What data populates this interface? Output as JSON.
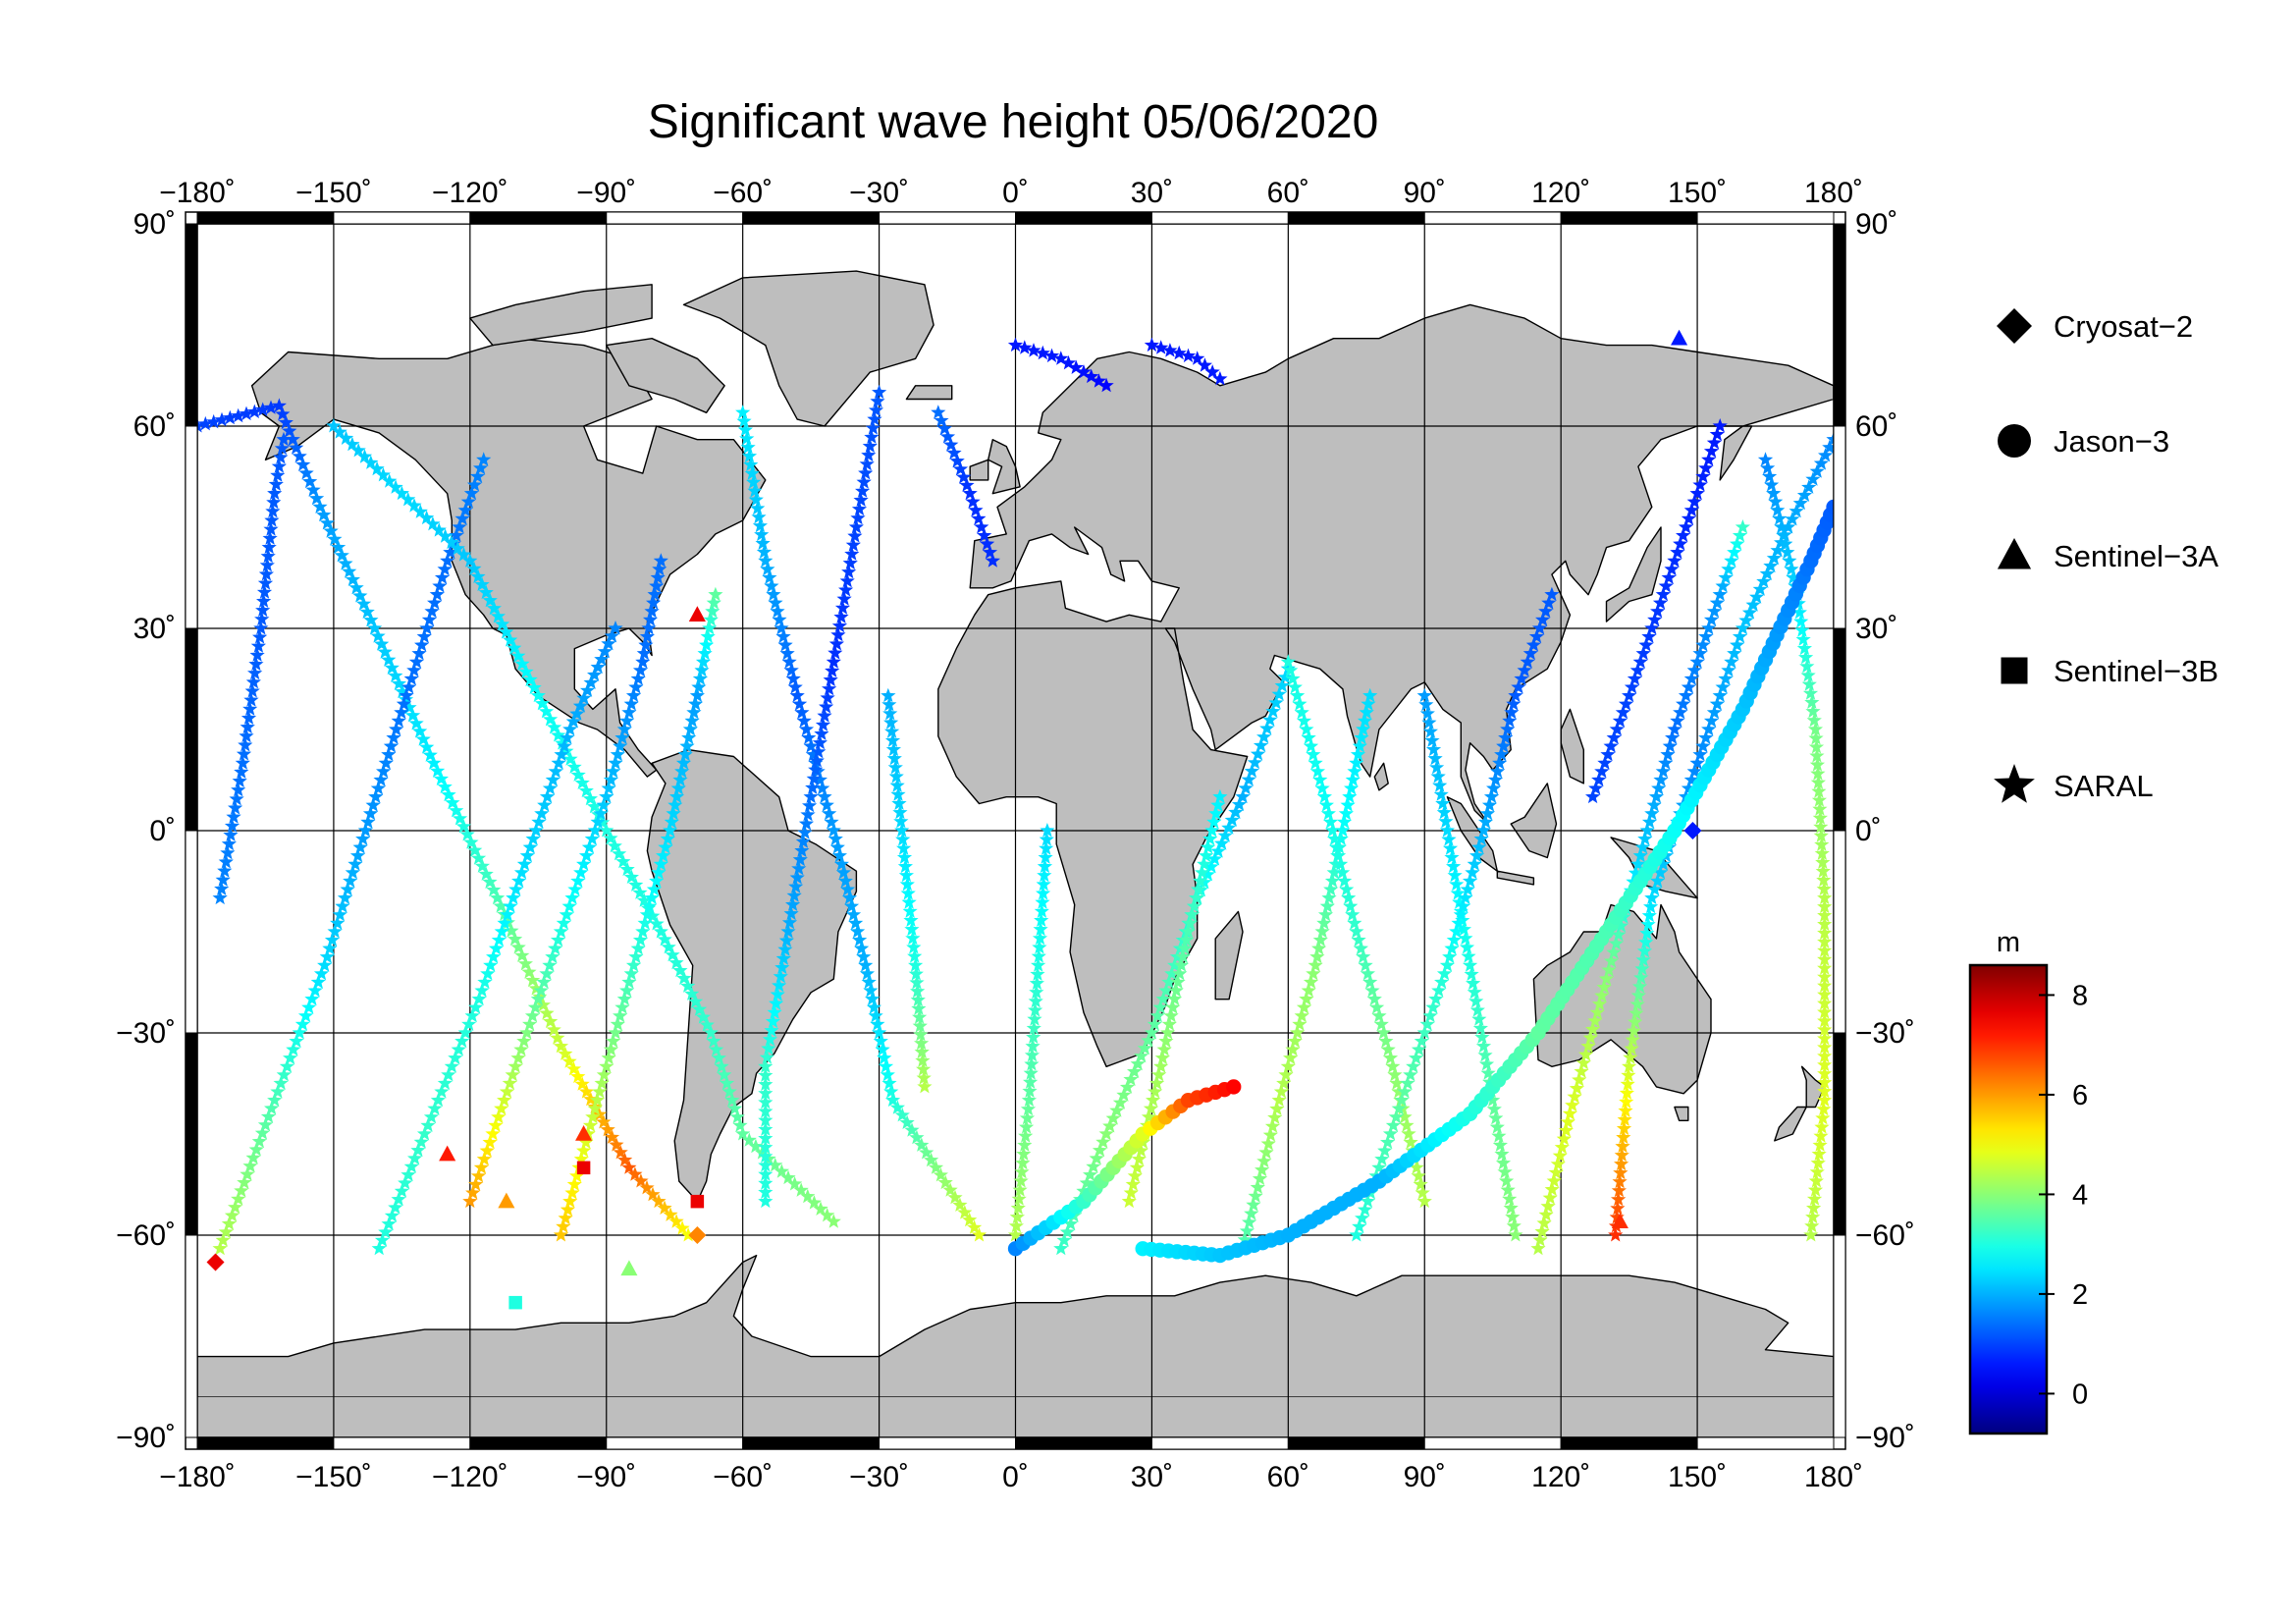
{
  "map": {
    "title": "Significant wave height 05/06/2020",
    "projection": "equirectangular",
    "lon_range": [
      -180,
      180
    ],
    "lat_range": [
      -90,
      90
    ],
    "lon_ticks": [
      {
        "value": -180,
        "label": "−180˚"
      },
      {
        "value": -150,
        "label": "−150˚"
      },
      {
        "value": -120,
        "label": "−120˚"
      },
      {
        "value": -90,
        "label": "−90˚"
      },
      {
        "value": -60,
        "label": "−60˚"
      },
      {
        "value": -30,
        "label": "−30˚"
      },
      {
        "value": 0,
        "label": "0˚"
      },
      {
        "value": 30,
        "label": "30˚"
      },
      {
        "value": 60,
        "label": "60˚"
      },
      {
        "value": 90,
        "label": "90˚"
      },
      {
        "value": 120,
        "label": "120˚"
      },
      {
        "value": 150,
        "label": "150˚"
      },
      {
        "value": 180,
        "label": "180˚"
      }
    ],
    "lat_ticks": [
      {
        "value": 90,
        "label": "90˚"
      },
      {
        "value": 60,
        "label": "60˚"
      },
      {
        "value": 30,
        "label": "30˚"
      },
      {
        "value": 0,
        "label": "0˚"
      },
      {
        "value": -30,
        "label": "−30˚"
      },
      {
        "value": -60,
        "label": "−60˚"
      },
      {
        "value": -90,
        "label": "−90˚"
      }
    ],
    "grid": true,
    "land_color": "#bebebe",
    "ocean_color": "#ffffff"
  },
  "legend": {
    "placement": "right",
    "items": [
      {
        "label": "Cryosat−2",
        "marker": "diamond"
      },
      {
        "label": "Jason−3",
        "marker": "circle"
      },
      {
        "label": "Sentinel−3A",
        "marker": "triangle"
      },
      {
        "label": "Sentinel−3B",
        "marker": "square"
      },
      {
        "label": "SARAL",
        "marker": "star"
      }
    ]
  },
  "colorbar": {
    "unit": "m",
    "min": -0.8,
    "max": 8.6,
    "ticks": [
      {
        "value": 0,
        "label": "0"
      },
      {
        "value": 2,
        "label": "2"
      },
      {
        "value": 4,
        "label": "4"
      },
      {
        "value": 6,
        "label": "6"
      },
      {
        "value": 8,
        "label": "8"
      }
    ],
    "colormap": "jet"
  },
  "chart_data": {
    "type": "scatter",
    "title": "Significant wave height 05/06/2020",
    "xlabel": "",
    "ylabel": "",
    "xlim": [
      -180,
      180
    ],
    "ylim": [
      -90,
      90
    ],
    "value_unit": "m",
    "tracks": [
      {
        "marker": "star",
        "points": [
          [
            -180,
            60,
            1.0
          ],
          [
            -162,
            63,
            0.9
          ],
          [
            -153,
            48,
            1.8
          ],
          [
            -141,
            30,
            2.2
          ],
          [
            -128,
            10,
            2.6
          ],
          [
            -114,
            -10,
            3.4
          ],
          [
            -100,
            -32,
            4.6
          ],
          [
            -85,
            -50,
            6.6
          ],
          [
            -72,
            -60,
            5.0
          ]
        ]
      },
      {
        "marker": "star",
        "points": [
          [
            -175,
            -62,
            4.4
          ],
          [
            -163,
            -40,
            3.4
          ],
          [
            -152,
            -20,
            2.4
          ],
          [
            -143,
            0,
            1.8
          ],
          [
            -134,
            20,
            1.4
          ],
          [
            -125,
            40,
            1.4
          ],
          [
            -117,
            55,
            1.6
          ]
        ]
      },
      {
        "marker": "star",
        "points": [
          [
            -175,
            -10,
            1.6
          ],
          [
            -170,
            10,
            1.4
          ],
          [
            -166,
            30,
            1.2
          ],
          [
            -163,
            50,
            1.2
          ],
          [
            -161,
            58,
            1.2
          ]
        ]
      },
      {
        "marker": "star",
        "points": [
          [
            -150,
            60,
            2.2
          ],
          [
            -135,
            50,
            2.4
          ],
          [
            -120,
            40,
            2.2
          ],
          [
            -105,
            20,
            2.8
          ],
          [
            -90,
            0,
            3.0
          ],
          [
            -78,
            -15,
            3.0
          ],
          [
            -67,
            -30,
            3.2
          ],
          [
            -60,
            -45,
            3.6
          ],
          [
            -40,
            -58,
            4.0
          ]
        ]
      },
      {
        "marker": "star",
        "points": [
          [
            -140,
            -62,
            3.0
          ],
          [
            -130,
            -45,
            3.2
          ],
          [
            -118,
            -25,
            3.0
          ],
          [
            -108,
            -5,
            2.4
          ],
          [
            -98,
            15,
            2.0
          ],
          [
            -88,
            30,
            1.6
          ]
        ]
      },
      {
        "marker": "star",
        "points": [
          [
            -120,
            -55,
            6.0
          ],
          [
            -110,
            -35,
            4.2
          ],
          [
            -100,
            -15,
            3.0
          ],
          [
            -90,
            5,
            2.2
          ],
          [
            -82,
            25,
            1.4
          ],
          [
            -78,
            40,
            1.4
          ]
        ]
      },
      {
        "marker": "star",
        "points": [
          [
            -100,
            -60,
            5.6
          ],
          [
            -92,
            -40,
            4.4
          ],
          [
            -84,
            -20,
            3.2
          ],
          [
            -76,
            0,
            2.4
          ],
          [
            -70,
            20,
            1.8
          ],
          [
            -66,
            35,
            3.6
          ]
        ]
      },
      {
        "marker": "star",
        "points": [
          [
            -60,
            62,
            2.6
          ],
          [
            -55,
            40,
            2.0
          ],
          [
            -48,
            20,
            1.2
          ],
          [
            -40,
            0,
            1.8
          ],
          [
            -33,
            -20,
            2.0
          ],
          [
            -27,
            -40,
            3.0
          ],
          [
            -8,
            -60,
            4.8
          ]
        ]
      },
      {
        "marker": "star",
        "points": [
          [
            -30,
            65,
            1.2
          ],
          [
            -35,
            45,
            1.0
          ],
          [
            -40,
            25,
            0.8
          ],
          [
            -45,
            5,
            1.4
          ],
          [
            -50,
            -15,
            2.0
          ],
          [
            -55,
            -35,
            3.2
          ],
          [
            -55,
            -55,
            3.0
          ]
        ]
      },
      {
        "marker": "star",
        "points": [
          [
            -17,
            62,
            1.4
          ],
          [
            -10,
            50,
            0.8
          ],
          [
            -5,
            40,
            0.8
          ]
        ]
      },
      {
        "marker": "star",
        "points": [
          [
            -20,
            -38,
            4.4
          ],
          [
            -22,
            -20,
            3.0
          ],
          [
            -25,
            0,
            2.4
          ],
          [
            -28,
            20,
            2.0
          ]
        ]
      },
      {
        "marker": "star",
        "points": [
          [
            0,
            -60,
            4.4
          ],
          [
            3,
            -40,
            3.6
          ],
          [
            5,
            -20,
            3.0
          ],
          [
            7,
            0,
            2.4
          ]
        ]
      },
      {
        "marker": "star",
        "points": [
          [
            0,
            72,
            0.6
          ],
          [
            10,
            70,
            0.6
          ],
          [
            20,
            66,
            0.4
          ]
        ]
      },
      {
        "marker": "star",
        "points": [
          [
            30,
            72,
            0.6
          ],
          [
            40,
            70,
            0.6
          ],
          [
            45,
            67,
            0.6
          ]
        ]
      },
      {
        "marker": "star",
        "points": [
          [
            10,
            -62,
            3.2
          ],
          [
            20,
            -45,
            4.0
          ],
          [
            30,
            -30,
            3.6
          ],
          [
            40,
            -10,
            3.0
          ],
          [
            50,
            5,
            2.0
          ],
          [
            60,
            24,
            2.4
          ]
        ]
      },
      {
        "marker": "star",
        "points": [
          [
            25,
            -55,
            4.6
          ],
          [
            32,
            -35,
            4.2
          ],
          [
            38,
            -15,
            3.4
          ],
          [
            45,
            5,
            2.6
          ]
        ]
      },
      {
        "marker": "star",
        "points": [
          [
            50,
            -62,
            3.4
          ],
          [
            58,
            -40,
            4.4
          ],
          [
            66,
            -20,
            4.0
          ],
          [
            72,
            0,
            2.8
          ],
          [
            78,
            20,
            2.4
          ]
        ]
      },
      {
        "marker": "star",
        "points": [
          [
            60,
            25,
            3.0
          ],
          [
            68,
            5,
            2.8
          ],
          [
            75,
            -15,
            3.2
          ],
          [
            83,
            -35,
            4.0
          ],
          [
            90,
            -55,
            4.4
          ]
        ]
      },
      {
        "marker": "star",
        "points": [
          [
            90,
            20,
            1.8
          ],
          [
            95,
            0,
            2.4
          ],
          [
            100,
            -20,
            3.0
          ],
          [
            105,
            -40,
            3.6
          ],
          [
            110,
            -60,
            4.0
          ]
        ]
      },
      {
        "marker": "star",
        "points": [
          [
            75,
            -60,
            3.0
          ],
          [
            85,
            -40,
            3.6
          ],
          [
            95,
            -20,
            3.0
          ],
          [
            103,
            0,
            2.0
          ],
          [
            110,
            20,
            1.2
          ],
          [
            118,
            35,
            1.2
          ]
        ]
      },
      {
        "marker": "star",
        "points": [
          [
            115,
            -62,
            4.4
          ],
          [
            122,
            -42,
            4.8
          ],
          [
            130,
            -22,
            4.0
          ],
          [
            137,
            -5,
            2.4
          ],
          [
            145,
            15,
            1.4
          ],
          [
            155,
            35,
            1.8
          ],
          [
            160,
            45,
            3.2
          ]
        ]
      },
      {
        "marker": "star",
        "points": [
          [
            155,
            60,
            0.6
          ],
          [
            145,
            40,
            0.8
          ],
          [
            135,
            20,
            1.0
          ],
          [
            127,
            5,
            1.0
          ]
        ]
      },
      {
        "marker": "star",
        "points": [
          [
            180,
            58,
            1.6
          ],
          [
            170,
            45,
            2.0
          ],
          [
            160,
            30,
            2.2
          ],
          [
            150,
            10,
            1.6
          ],
          [
            140,
            -10,
            2.4
          ],
          [
            135,
            -35,
            4.6
          ],
          [
            132,
            -60,
            7.0
          ]
        ]
      },
      {
        "marker": "star",
        "points": [
          [
            165,
            55,
            1.6
          ],
          [
            172,
            35,
            2.4
          ],
          [
            176,
            15,
            3.8
          ],
          [
            178,
            -10,
            4.4
          ],
          [
            178,
            -40,
            4.8
          ],
          [
            175,
            -60,
            4.4
          ]
        ]
      },
      {
        "marker": "circle",
        "points": [
          [
            0,
            -62,
            1.6
          ],
          [
            15,
            -55,
            3.2
          ],
          [
            28,
            -45,
            4.8
          ],
          [
            38,
            -40,
            6.8
          ],
          [
            48,
            -38,
            7.4
          ]
        ]
      },
      {
        "marker": "circle",
        "points": [
          [
            28,
            -62,
            2.6
          ],
          [
            45,
            -63,
            2.2
          ],
          [
            60,
            -60,
            2.0
          ],
          [
            80,
            -52,
            2.0
          ],
          [
            100,
            -42,
            3.0
          ],
          [
            115,
            -30,
            3.6
          ],
          [
            130,
            -15,
            3.4
          ],
          [
            145,
            0,
            2.8
          ],
          [
            160,
            18,
            2.2
          ],
          [
            175,
            40,
            1.4
          ],
          [
            180,
            48,
            1.2
          ]
        ]
      },
      {
        "marker": "diamond",
        "points": [
          [
            -176,
            -64,
            7.6
          ],
          [
            -70,
            -60,
            6.2
          ],
          [
            149,
            0,
            0.6
          ]
        ]
      },
      {
        "marker": "triangle",
        "points": [
          [
            -125,
            -48,
            7.2
          ],
          [
            -112,
            -55,
            6.0
          ],
          [
            -95,
            -45,
            7.0
          ],
          [
            -85,
            -65,
            4.0
          ],
          [
            -70,
            32,
            7.6
          ],
          [
            133,
            -58,
            7.0
          ],
          [
            146,
            73,
            0.6
          ]
        ]
      },
      {
        "marker": "square",
        "points": [
          [
            -110,
            -70,
            3.0
          ],
          [
            -95,
            -50,
            7.6
          ],
          [
            -70,
            -55,
            7.6
          ]
        ]
      }
    ]
  }
}
